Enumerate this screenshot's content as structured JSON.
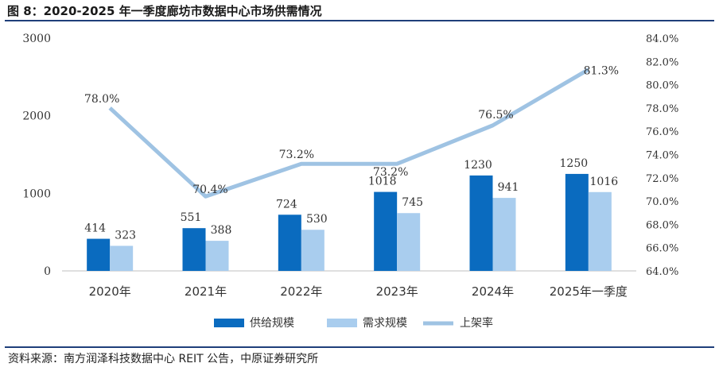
{
  "title": "图 8：2020-2025 年一季度廊坊市数据中心市场供需情况",
  "source": "资料来源：南方润泽科技数据中心 REIT 公告，中原证券研究所",
  "chart_data": {
    "type": "bar",
    "categories": [
      "2020年",
      "2021年",
      "2022年",
      "2023年",
      "2024年",
      "2025年一季度"
    ],
    "series": [
      {
        "name": "供给规模",
        "type": "bar",
        "axis": "left",
        "color": "#0a6bbf",
        "values": [
          414,
          551,
          724,
          1018,
          1230,
          1250
        ]
      },
      {
        "name": "需求规模",
        "type": "bar",
        "axis": "left",
        "color": "#a9cdee",
        "values": [
          323,
          388,
          530,
          745,
          941,
          1016
        ]
      },
      {
        "name": "上架率",
        "type": "line",
        "axis": "right",
        "color": "#9fc3e3",
        "values": [
          78.0,
          70.4,
          73.2,
          73.2,
          76.5,
          81.3
        ],
        "labels": [
          "78.0%",
          "70.4%",
          "73.2%",
          "73.2%",
          "76.5%",
          "81.3%"
        ]
      }
    ],
    "y_left": {
      "min": 0,
      "max": 3000,
      "ticks": [
        "3000",
        "2000",
        "1000",
        "0"
      ],
      "tick_values": [
        3000,
        2000,
        1000,
        0
      ]
    },
    "y_right": {
      "min": 64,
      "max": 84,
      "ticks": [
        "84.0%",
        "82.0%",
        "80.0%",
        "78.0%",
        "76.0%",
        "74.0%",
        "72.0%",
        "70.0%",
        "68.0%",
        "66.0%",
        "64.0%"
      ],
      "tick_values": [
        84,
        82,
        80,
        78,
        76,
        74,
        72,
        70,
        68,
        66,
        64
      ]
    },
    "legend": {
      "position": "bottom",
      "items": [
        "供给规模",
        "需求规模",
        "上架率"
      ]
    }
  }
}
